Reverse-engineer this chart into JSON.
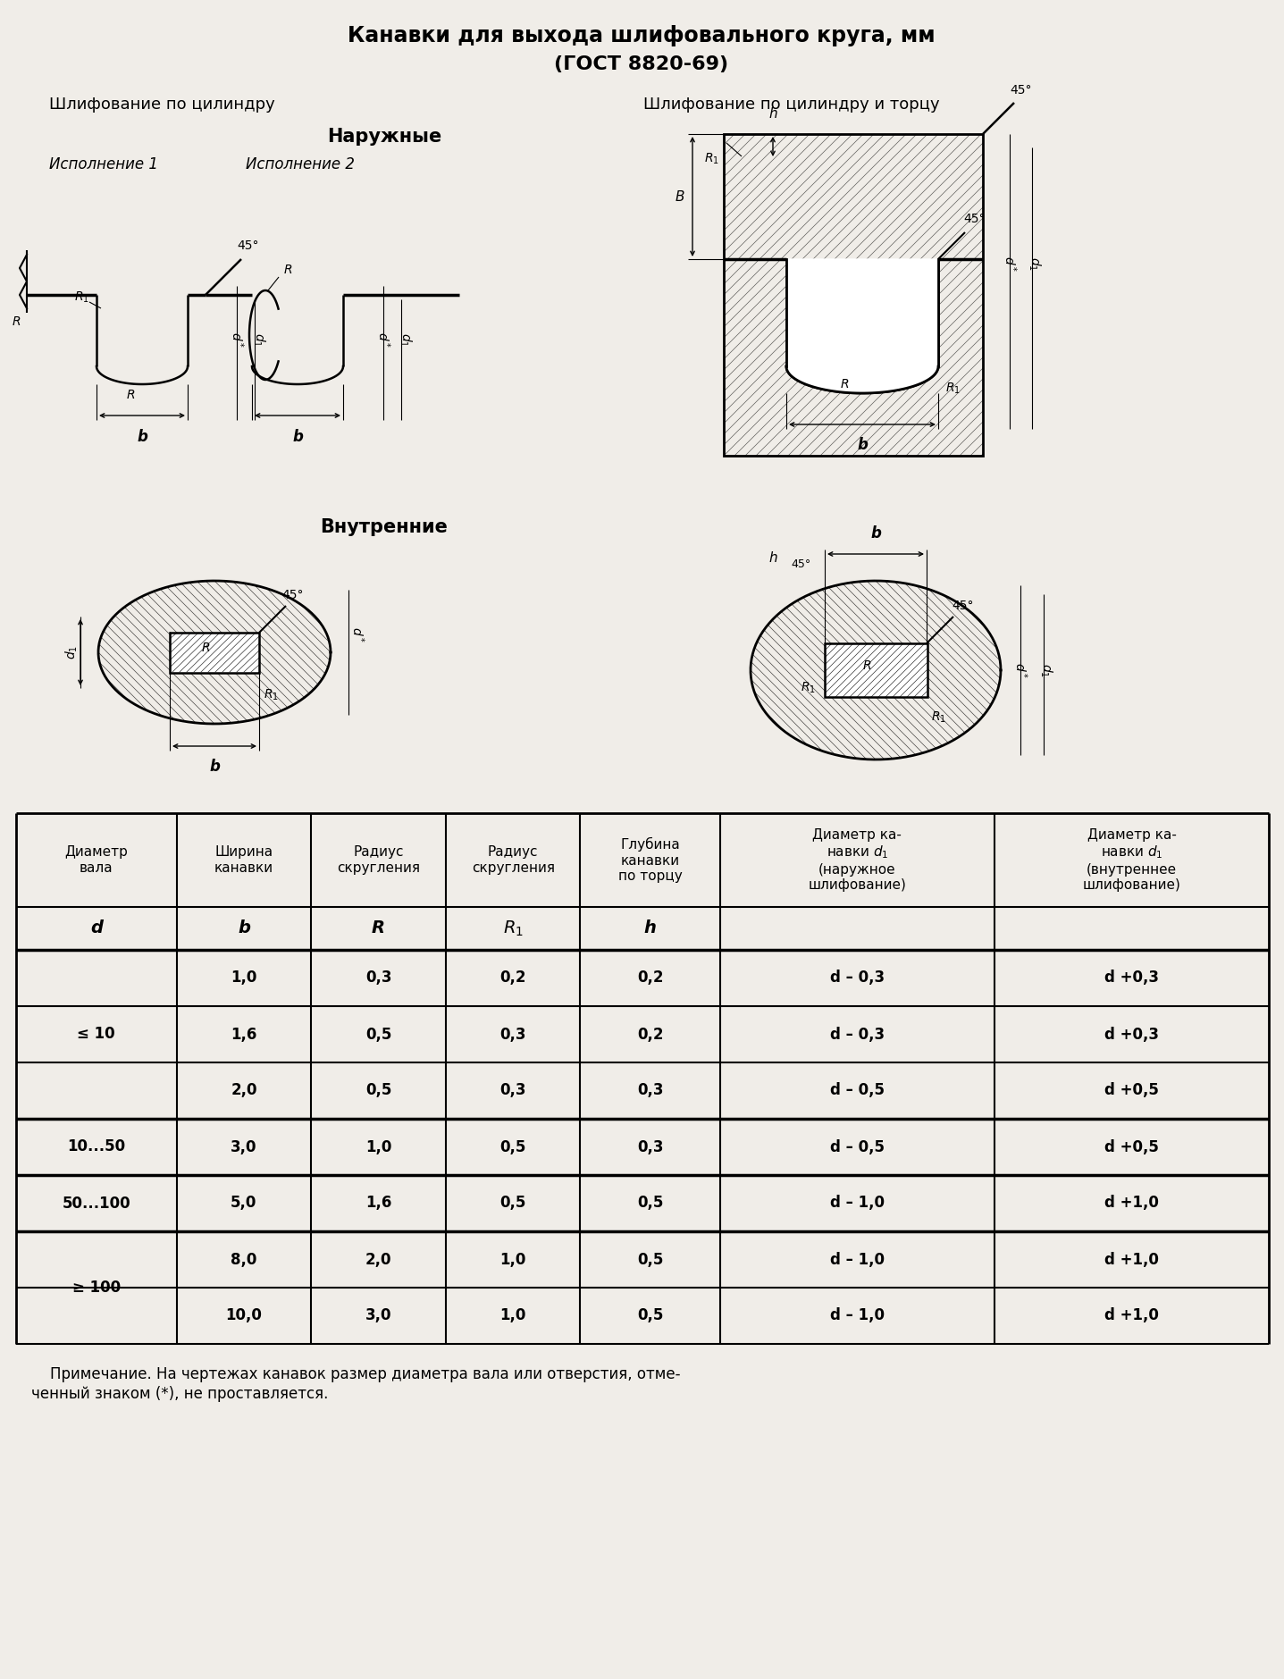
{
  "title_line1": "Канавки для выхода шлифовального круга, мм",
  "title_line2": "(ГОСТ 8820-69)",
  "subtitle_left": "Шлифование по цилиндру",
  "subtitle_right": "Шлифование по цилиндру и торцу",
  "section_naruzhnie": "Наружные",
  "section_vnutrennie": "Внутренние",
  "ispolnenie1": "Исполнение 1",
  "ispolnenie2": "Исполнение 2",
  "note_line1": "    Примечание. На чертежах канавок размер диаметра вала или отверстия, отме-",
  "note_line2": "ченный знаком (*), не проставляется.",
  "col_headers_row1": [
    "Диаметр\nвала",
    "Ширина\nканавки",
    "Радиус\nскругления",
    "Радиус\nскругления",
    "Глубина\nканавки\nпо торцу",
    "Диаметр ка-\nнавки d1\n(наружное\nшлифование)",
    "Диаметр ка-\nнавки d1\n(внутреннее\nшлифование)"
  ],
  "col_headers_row2": [
    "d",
    "b",
    "R",
    "R1",
    "h",
    "",
    ""
  ],
  "merged_col0": [
    "≤ 10",
    "10...50",
    "50...100",
    "≥ 100"
  ],
  "col_data": [
    [
      "1,0",
      "0,3",
      "0,2",
      "0,2",
      "d – 0,3",
      "d +0,3"
    ],
    [
      "1,6",
      "0,5",
      "0,3",
      "0,2",
      "d – 0,3",
      "d +0,3"
    ],
    [
      "2,0",
      "0,5",
      "0,3",
      "0,3",
      "d – 0,5",
      "d +0,5"
    ],
    [
      "3,0",
      "1,0",
      "0,5",
      "0,3",
      "d – 0,5",
      "d +0,5"
    ],
    [
      "5,0",
      "1,6",
      "0,5",
      "0,5",
      "d – 1,0",
      "d +1,0"
    ],
    [
      "8,0",
      "2,0",
      "1,0",
      "0,5",
      "d – 1,0",
      "d +1,0"
    ],
    [
      "10,0",
      "3,0",
      "1,0",
      "0,5",
      "d – 1,0",
      "d +1,0"
    ]
  ],
  "bg_color": "#f0ede8"
}
